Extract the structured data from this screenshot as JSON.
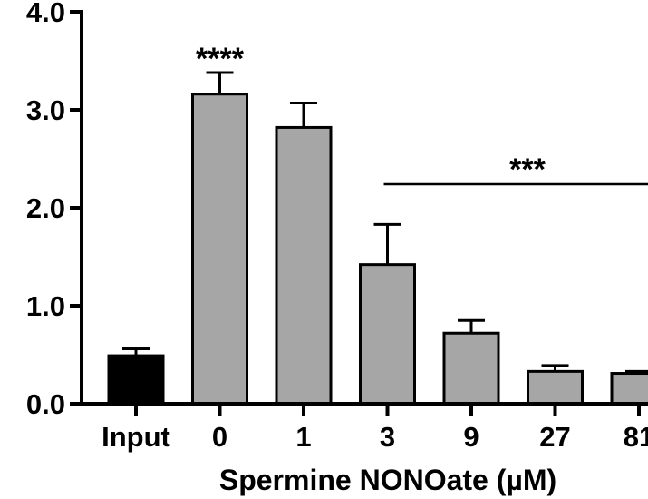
{
  "chart_data": {
    "type": "bar",
    "title": "",
    "xlabel": "Spermine NONOate (µM)",
    "ylabel": "",
    "ylim": [
      0,
      4.0
    ],
    "yticks": [
      "0.0",
      "1.0",
      "2.0",
      "3.0",
      "4.0"
    ],
    "categories": [
      "Input",
      "0",
      "1",
      "3",
      "9",
      "27",
      "81"
    ],
    "values": [
      0.49,
      3.16,
      2.82,
      1.42,
      0.72,
      0.33,
      0.31
    ],
    "error_upper": [
      0.56,
      3.38,
      3.07,
      1.83,
      0.85,
      0.39,
      0.33
    ],
    "bar_colors": [
      "#000000",
      "#a6a6a6",
      "#a6a6a6",
      "#a6a6a6",
      "#a6a6a6",
      "#a6a6a6",
      "#a6a6a6"
    ],
    "annotations": [
      {
        "text": "****",
        "category": "0"
      },
      {
        "text": "***",
        "from_category": "3",
        "to_category": "81"
      }
    ],
    "grid": false,
    "legend": "none"
  }
}
